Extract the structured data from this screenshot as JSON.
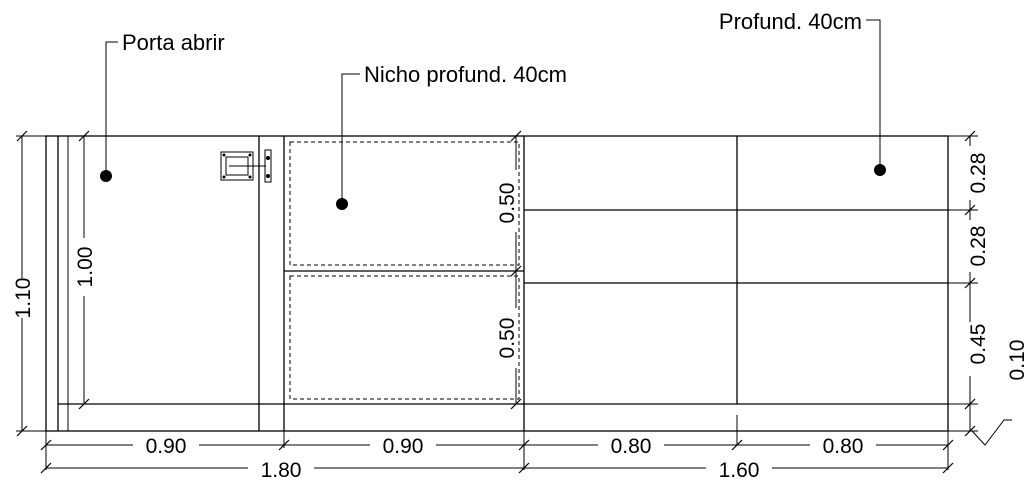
{
  "annotations": {
    "porta": "Porta abrir",
    "nicho": "Nicho profund. 40cm",
    "profund": "Profund. 40cm"
  },
  "dimensions": {
    "left_height": "1.10",
    "inner_height": "1.00",
    "niche_top_height": "0.50",
    "niche_bottom_height": "0.50",
    "right_top": "0.28",
    "right_second": "0.28",
    "right_third": "0.45",
    "right_base": "0.10",
    "bottom_a": "0.90",
    "bottom_b": "0.90",
    "bottom_c": "0.80",
    "bottom_d": "0.80",
    "total_left": "1.80",
    "total_right": "1.60"
  }
}
